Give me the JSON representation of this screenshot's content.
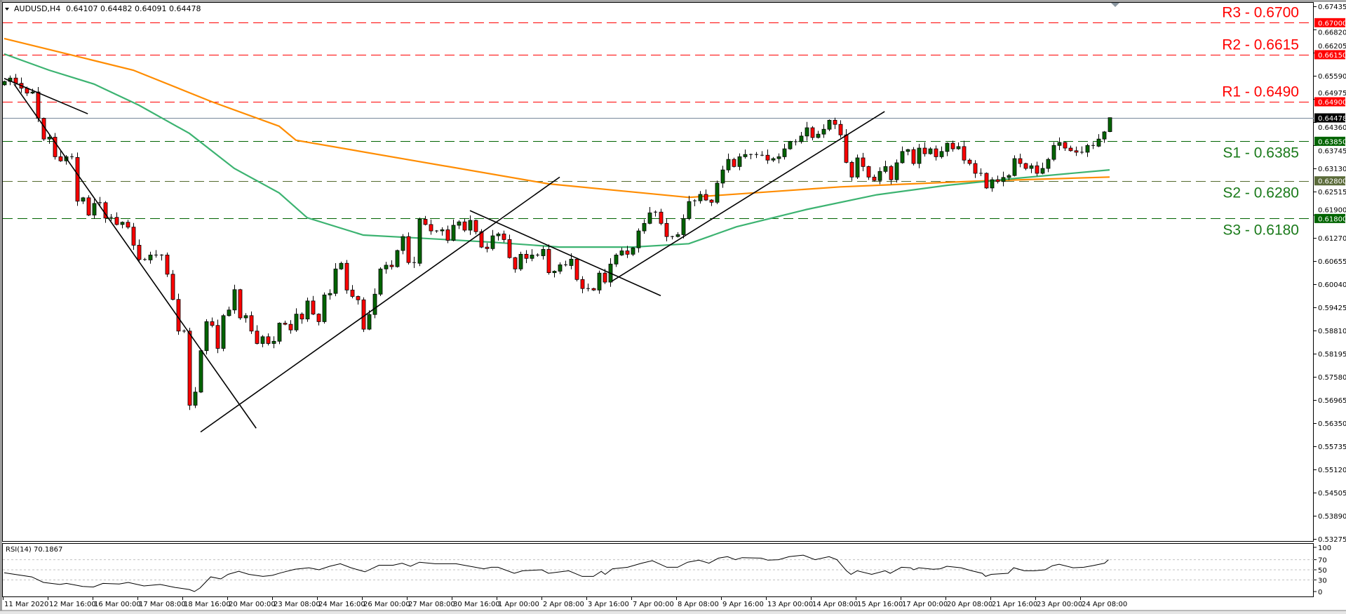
{
  "header": {
    "symbol_title": "AUDUSD,H4",
    "ohlc": "0.64107 0.64482 0.64091 0.64478"
  },
  "chart_data": {
    "type": "candlestick",
    "symbol": "AUDUSD",
    "timeframe": "H4",
    "ylim": [
      0.53275,
      0.67435
    ],
    "y_ticks": [
      "0.67435",
      "0.66820",
      "0.66205",
      "0.65590",
      "0.64975",
      "0.64360",
      "0.63745",
      "0.63130",
      "0.62515",
      "0.61900",
      "0.61270",
      "0.60655",
      "0.60040",
      "0.59425",
      "0.58810",
      "0.58195",
      "0.57580",
      "0.56965",
      "0.56350",
      "0.55735",
      "0.55120",
      "0.54505",
      "0.53890",
      "0.53275"
    ],
    "x_ticks": [
      "11 Mar 2020",
      "12 Mar 16:00",
      "16 Mar 00:00",
      "17 Mar 08:00",
      "18 Mar 16:00",
      "20 Mar 00:00",
      "23 Mar 08:00",
      "24 Mar 16:00",
      "26 Mar 00:00",
      "27 Mar 08:00",
      "30 Mar 16:00",
      "1 Apr 00:00",
      "2 Apr 08:00",
      "3 Apr 16:00",
      "7 Apr 00:00",
      "8 Apr 08:00",
      "9 Apr 16:00",
      "13 Apr 00:00",
      "14 Apr 08:00",
      "15 Apr 16:00",
      "17 Apr 00:00",
      "20 Apr 08:00",
      "21 Apr 16:00",
      "23 Apr 00:00",
      "24 Apr 08:00"
    ],
    "first_open": 0.6535,
    "closes": [
      0.6544,
      0.6553,
      0.6539,
      0.6526,
      0.6513,
      0.6516,
      0.6446,
      0.6391,
      0.6396,
      0.6344,
      0.6333,
      0.6344,
      0.6342,
      0.6226,
      0.6235,
      0.6189,
      0.622,
      0.6222,
      0.6181,
      0.6183,
      0.6164,
      0.617,
      0.6157,
      0.6109,
      0.6071,
      0.607,
      0.6083,
      0.6081,
      0.6083,
      0.6032,
      0.5965,
      0.5881,
      0.5881,
      0.5684,
      0.5719,
      0.5829,
      0.5906,
      0.5896,
      0.5835,
      0.5922,
      0.5937,
      0.5991,
      0.5916,
      0.5922,
      0.5881,
      0.5848,
      0.5866,
      0.5848,
      0.5854,
      0.5902,
      0.5899,
      0.5884,
      0.5926,
      0.5913,
      0.5961,
      0.5926,
      0.5906,
      0.5977,
      0.5981,
      0.6046,
      0.6061,
      0.599,
      0.5973,
      0.5964,
      0.5886,
      0.5925,
      0.5979,
      0.6046,
      0.6056,
      0.6052,
      0.6095,
      0.6132,
      0.6063,
      0.6061,
      0.6178,
      0.6164,
      0.6147,
      0.6147,
      0.615,
      0.6122,
      0.6162,
      0.6171,
      0.6149,
      0.6175,
      0.6145,
      0.6104,
      0.61,
      0.6134,
      0.6139,
      0.6124,
      0.6076,
      0.6046,
      0.6085,
      0.6074,
      0.6083,
      0.6081,
      0.6098,
      0.6036,
      0.604,
      0.6057,
      0.6055,
      0.6072,
      0.6018,
      0.5994,
      0.5994,
      0.599,
      0.6035,
      0.6011,
      0.6059,
      0.6083,
      0.6094,
      0.6085,
      0.6102,
      0.6147,
      0.6167,
      0.6195,
      0.6197,
      0.6167,
      0.6132,
      0.6132,
      0.6137,
      0.618,
      0.6225,
      0.6227,
      0.6244,
      0.6229,
      0.6223,
      0.6274,
      0.6309,
      0.6337,
      0.6318,
      0.6344,
      0.635,
      0.635,
      0.6348,
      0.6348,
      0.6335,
      0.6339,
      0.6344,
      0.6365,
      0.6384,
      0.6384,
      0.6399,
      0.6421,
      0.6395,
      0.6404,
      0.6417,
      0.6441,
      0.643,
      0.6402,
      0.6329,
      0.629,
      0.6341,
      0.6318,
      0.629,
      0.6281,
      0.6305,
      0.6318,
      0.6283,
      0.6328,
      0.6358,
      0.6363,
      0.6326,
      0.6367,
      0.6352,
      0.6365,
      0.6344,
      0.6358,
      0.638,
      0.6365,
      0.6371,
      0.6335,
      0.6326,
      0.63,
      0.63,
      0.6261,
      0.6283,
      0.6278,
      0.6289,
      0.6294,
      0.6339,
      0.6326,
      0.6313,
      0.632,
      0.63,
      0.6313,
      0.6337,
      0.6374,
      0.6382,
      0.6367,
      0.636,
      0.6356,
      0.6356,
      0.6374,
      0.6372,
      0.6391,
      0.641,
      0.64478
    ],
    "last_bar": {
      "open": 0.64107,
      "high": 0.64482,
      "low": 0.64091,
      "close": 0.64478
    },
    "current_price": {
      "value": 0.64478,
      "label": "0.64478"
    },
    "levels": [
      {
        "name": "R3",
        "label": "R3 - 0.6700",
        "price": 0.67,
        "axis_label": "0.67000",
        "color": "#ff0000",
        "box_color": "#ff0000"
      },
      {
        "name": "R2",
        "label": "R2 - 0.6615",
        "price": 0.6615,
        "axis_label": "0.66150",
        "color": "#ff0000",
        "box_color": "#ff0000"
      },
      {
        "name": "R1",
        "label": "R1 - 0.6490",
        "price": 0.649,
        "axis_label": "0.64900",
        "color": "#ff0000",
        "box_color": "#ff0000"
      },
      {
        "name": "S1",
        "label": "S1 - 0.6385",
        "price": 0.6385,
        "axis_label": "0.63850",
        "color": "#006400",
        "box_color": "#006400"
      },
      {
        "name": "S2",
        "label": "S2 - 0.6280",
        "price": 0.628,
        "axis_label": "0.62800",
        "color": "#556b2f",
        "box_color": "#5b6b3a"
      },
      {
        "name": "S3",
        "label": "S3 - 0.6180",
        "price": 0.618,
        "axis_label": "0.61800",
        "color": "#006400",
        "box_color": "#006400"
      }
    ],
    "moving_averages": [
      {
        "name": "orange-ma",
        "color": "#ff8c00",
        "points": [
          [
            0,
            0.6658
          ],
          [
            23,
            0.6574
          ],
          [
            37,
            0.649
          ],
          [
            49,
            0.6425
          ],
          [
            52,
            0.6388
          ],
          [
            74,
            0.6331
          ],
          [
            97,
            0.6272
          ],
          [
            122,
            0.6236
          ],
          [
            149,
            0.6264
          ],
          [
            173,
            0.6279
          ],
          [
            197,
            0.629
          ]
        ]
      },
      {
        "name": "green-ma",
        "color": "#3cb371",
        "points": [
          [
            0,
            0.6617
          ],
          [
            8,
            0.6574
          ],
          [
            16,
            0.6537
          ],
          [
            24,
            0.6481
          ],
          [
            33,
            0.6406
          ],
          [
            41,
            0.6313
          ],
          [
            49,
            0.6248
          ],
          [
            54,
            0.6182
          ],
          [
            64,
            0.6136
          ],
          [
            74,
            0.6128
          ],
          [
            87,
            0.6117
          ],
          [
            99,
            0.6104
          ],
          [
            112,
            0.6104
          ],
          [
            122,
            0.6113
          ],
          [
            130.5,
            0.6158
          ],
          [
            143,
            0.6204
          ],
          [
            155.5,
            0.6243
          ],
          [
            168,
            0.6268
          ],
          [
            180.5,
            0.6287
          ],
          [
            197,
            0.6309
          ]
        ]
      }
    ],
    "trendlines": [
      [
        [
          0,
          0.6552
        ],
        [
          14.9,
          0.6458
        ]
      ],
      [
        [
          1.75,
          0.6537
        ],
        [
          44.9,
          0.5623
        ]
      ],
      [
        [
          35,
          0.5613
        ],
        [
          99,
          0.629
        ]
      ],
      [
        [
          83,
          0.6201
        ],
        [
          117,
          0.5975
        ]
      ],
      [
        [
          108.25,
          0.6013
        ],
        [
          156.9,
          0.6464
        ]
      ]
    ],
    "rsi": {
      "label": "RSI(14) 70.1867",
      "value": 70.1867,
      "levels": [
        70,
        50,
        30
      ],
      "axis_ticks": [
        "100",
        "70",
        "50",
        "30",
        "0"
      ],
      "points": [
        [
          0,
          44
        ],
        [
          4.9,
          36
        ],
        [
          7,
          25
        ],
        [
          9.9,
          21
        ],
        [
          11.1,
          23
        ],
        [
          14,
          17
        ],
        [
          15.9,
          16
        ],
        [
          17.6,
          23
        ],
        [
          20.5,
          22
        ],
        [
          22.1,
          25
        ],
        [
          24.9,
          18
        ],
        [
          27.8,
          21
        ],
        [
          30.5,
          15
        ],
        [
          33,
          11
        ],
        [
          33.9,
          7
        ],
        [
          34.9,
          14
        ],
        [
          36.8,
          36
        ],
        [
          38.6,
          32
        ],
        [
          39.9,
          41
        ],
        [
          41.8,
          47
        ],
        [
          43.6,
          41
        ],
        [
          46.1,
          37
        ],
        [
          47.8,
          39
        ],
        [
          49.3,
          44
        ],
        [
          51.8,
          51
        ],
        [
          54.3,
          54
        ],
        [
          56.1,
          50
        ],
        [
          58,
          57
        ],
        [
          59.9,
          62
        ],
        [
          61.8,
          54
        ],
        [
          64.3,
          46
        ],
        [
          66.8,
          59
        ],
        [
          69.3,
          59
        ],
        [
          70.9,
          63
        ],
        [
          72.4,
          57
        ],
        [
          74,
          65
        ],
        [
          76.8,
          62
        ],
        [
          80.5,
          62
        ],
        [
          85.5,
          52
        ],
        [
          86.8,
          55
        ],
        [
          88,
          55
        ],
        [
          90.9,
          43
        ],
        [
          92.4,
          48
        ],
        [
          95.8,
          50
        ],
        [
          97,
          43
        ],
        [
          100.6,
          48
        ],
        [
          103,
          37
        ],
        [
          105,
          37
        ],
        [
          106.4,
          47
        ],
        [
          107.1,
          41
        ],
        [
          108.4,
          52
        ],
        [
          111.1,
          55
        ],
        [
          113.6,
          63
        ],
        [
          115.5,
          68
        ],
        [
          118.1,
          55
        ],
        [
          120,
          55
        ],
        [
          121.8,
          65
        ],
        [
          123.8,
          69
        ],
        [
          125.6,
          63
        ],
        [
          127.3,
          73
        ],
        [
          128.9,
          76
        ],
        [
          130.3,
          70
        ],
        [
          131.5,
          74
        ],
        [
          134.9,
          73
        ],
        [
          136.1,
          69
        ],
        [
          138,
          70
        ],
        [
          139.9,
          76
        ],
        [
          142.4,
          79
        ],
        [
          144.5,
          70
        ],
        [
          147,
          76
        ],
        [
          148.4,
          70
        ],
        [
          150.1,
          48
        ],
        [
          150.9,
          41
        ],
        [
          152,
          48
        ],
        [
          154.6,
          41
        ],
        [
          157,
          48
        ],
        [
          157.9,
          43
        ],
        [
          159.9,
          55
        ],
        [
          161.5,
          54
        ],
        [
          162.1,
          50
        ],
        [
          163,
          54
        ],
        [
          165.5,
          51
        ],
        [
          166.8,
          52
        ],
        [
          168,
          57
        ],
        [
          170.5,
          54
        ],
        [
          172.4,
          48
        ],
        [
          174.3,
          43
        ],
        [
          174.9,
          37
        ],
        [
          175.9,
          41
        ],
        [
          178.9,
          43
        ],
        [
          179.9,
          54
        ],
        [
          181.8,
          48
        ],
        [
          183.6,
          48
        ],
        [
          185.5,
          50
        ],
        [
          186.8,
          58
        ],
        [
          188,
          61
        ],
        [
          190.5,
          54
        ],
        [
          192.4,
          55
        ],
        [
          193.9,
          58
        ],
        [
          196.1,
          63
        ],
        [
          196.8,
          70
        ]
      ]
    },
    "colors": {
      "bull": "#006400",
      "bear": "#ff0000",
      "current_line": "#778899",
      "trendline": "#000000"
    }
  }
}
